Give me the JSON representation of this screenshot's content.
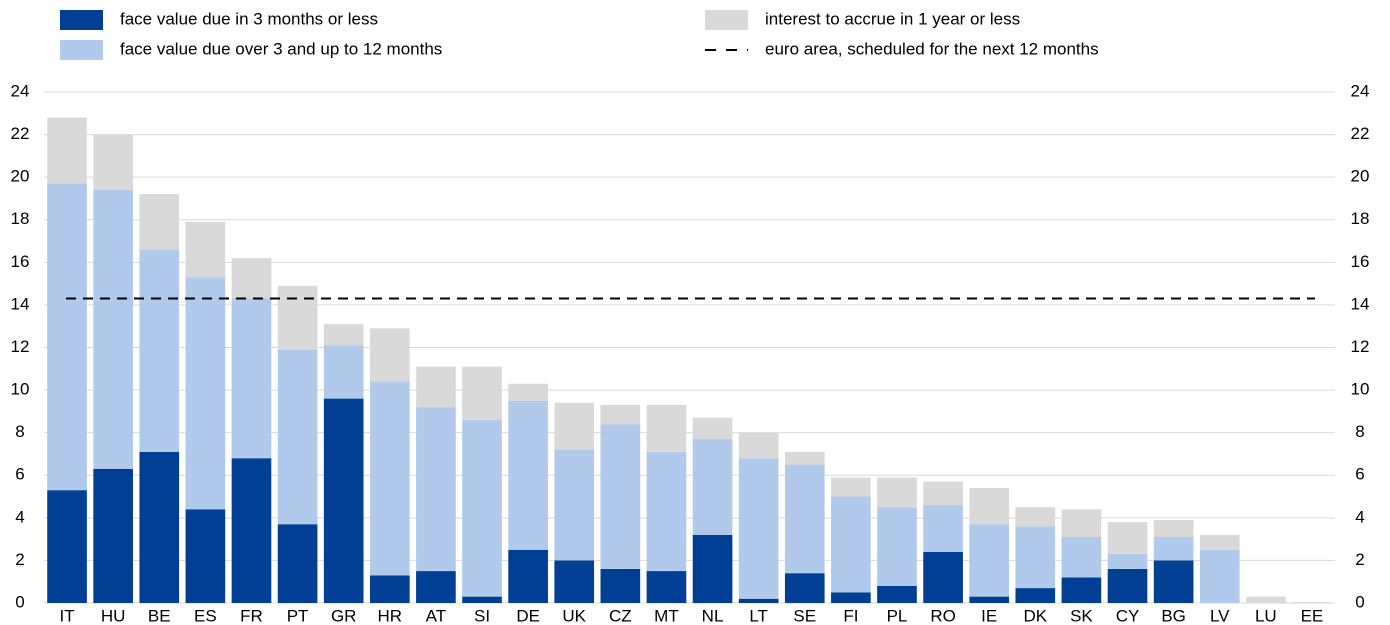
{
  "chart_data": {
    "type": "stacked_bar",
    "categories": [
      "IT",
      "HU",
      "BE",
      "ES",
      "FR",
      "PT",
      "GR",
      "HR",
      "AT",
      "SI",
      "DE",
      "UK",
      "CZ",
      "MT",
      "NL",
      "LT",
      "SE",
      "FI",
      "PL",
      "RO",
      "IE",
      "DK",
      "SK",
      "CY",
      "BG",
      "LV",
      "LU",
      "EE"
    ],
    "series": [
      {
        "name": "face value due in 3 months or less",
        "color": "#003f94",
        "values": [
          5.3,
          6.3,
          7.1,
          4.4,
          6.8,
          3.7,
          9.6,
          1.3,
          1.5,
          0.3,
          2.5,
          2.0,
          1.6,
          1.5,
          3.2,
          0.2,
          1.4,
          0.5,
          0.8,
          2.4,
          0.3,
          0.7,
          1.2,
          1.6,
          2.0,
          0,
          0,
          0
        ]
      },
      {
        "name": "face value due over 3 and up to 12 months",
        "color": "#b1c9ea",
        "values": [
          14.4,
          13.1,
          9.5,
          10.9,
          7.5,
          8.2,
          2.5,
          9.1,
          7.7,
          8.3,
          7.0,
          5.2,
          6.8,
          5.6,
          4.5,
          6.6,
          5.1,
          4.5,
          3.7,
          2.2,
          3.4,
          2.9,
          1.9,
          0.7,
          1.1,
          2.5,
          0,
          0
        ]
      },
      {
        "name": "interest to accrue in 1 year or less",
        "color": "#d9d9d9",
        "values": [
          3.1,
          2.6,
          2.6,
          2.6,
          1.9,
          3.0,
          1.0,
          2.5,
          1.9,
          2.5,
          0.8,
          2.2,
          0.9,
          2.2,
          1.0,
          1.2,
          0.6,
          0.9,
          1.4,
          1.1,
          1.7,
          0.9,
          1.3,
          1.5,
          0.8,
          0.7,
          0.3,
          0.05
        ]
      }
    ],
    "reference_line": {
      "name": "euro area, scheduled for the next 12 months",
      "value": 14.3,
      "color": "#000000"
    },
    "ylim": [
      0,
      24
    ],
    "yticks": [
      0,
      2,
      4,
      6,
      8,
      10,
      12,
      14,
      16,
      18,
      20,
      22,
      24
    ],
    "grid": true
  }
}
